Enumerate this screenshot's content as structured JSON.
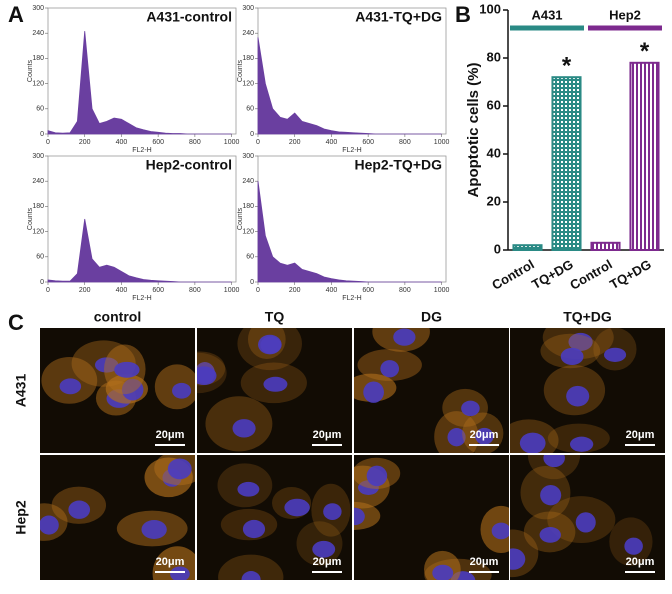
{
  "chart_data": [
    {
      "type": "area",
      "title": "A431-control",
      "xlabel": "FL2-H",
      "ylabel": "Counts",
      "color": "#6a3fa0",
      "x": [
        0,
        40,
        80,
        120,
        160,
        200,
        240,
        280,
        320,
        360,
        400,
        440,
        480,
        520,
        560,
        600,
        640,
        680,
        720,
        760,
        800,
        840,
        880,
        920,
        960,
        1000
      ],
      "values": [
        8,
        3,
        2,
        3,
        30,
        245,
        60,
        25,
        30,
        38,
        35,
        25,
        15,
        10,
        6,
        4,
        2,
        1,
        1,
        0,
        0,
        0,
        0,
        0,
        0,
        0
      ],
      "xlim": [
        0,
        1024
      ],
      "ylim": [
        0,
        300
      ],
      "xticks": [
        0,
        200,
        400,
        600,
        800,
        1000
      ],
      "yticks": [
        0,
        60,
        120,
        180,
        240,
        300
      ]
    },
    {
      "type": "area",
      "title": "A431-TQ+DG",
      "xlabel": "FL2-H",
      "ylabel": "Counts",
      "color": "#6a3fa0",
      "x": [
        0,
        40,
        80,
        120,
        160,
        200,
        240,
        280,
        320,
        360,
        400,
        440,
        480,
        520,
        560,
        600,
        640,
        680,
        720,
        760,
        800,
        840,
        880,
        920,
        960,
        1000
      ],
      "values": [
        230,
        120,
        60,
        40,
        35,
        50,
        30,
        25,
        20,
        12,
        8,
        5,
        4,
        3,
        2,
        1,
        0,
        0,
        0,
        0,
        0,
        0,
        0,
        0,
        0,
        0
      ],
      "xlim": [
        0,
        1024
      ],
      "ylim": [
        0,
        300
      ],
      "xticks": [
        0,
        200,
        400,
        600,
        800,
        1000
      ],
      "yticks": [
        0,
        60,
        120,
        180,
        240,
        300
      ]
    },
    {
      "type": "area",
      "title": "Hep2-control",
      "xlabel": "FL2-H",
      "ylabel": "Counts",
      "color": "#6a3fa0",
      "x": [
        0,
        40,
        80,
        120,
        160,
        200,
        240,
        280,
        320,
        360,
        400,
        440,
        480,
        520,
        560,
        600,
        640,
        680,
        720,
        760,
        800,
        840,
        880,
        920,
        960,
        1000
      ],
      "values": [
        5,
        3,
        2,
        2,
        20,
        150,
        55,
        35,
        40,
        35,
        25,
        15,
        10,
        6,
        4,
        3,
        2,
        1,
        0,
        0,
        0,
        0,
        0,
        0,
        0,
        0
      ],
      "xlim": [
        0,
        1024
      ],
      "ylim": [
        0,
        300
      ],
      "xticks": [
        0,
        200,
        400,
        600,
        800,
        1000
      ],
      "yticks": [
        0,
        60,
        120,
        180,
        240,
        300
      ]
    },
    {
      "type": "area",
      "title": "Hep2-TQ+DG",
      "xlabel": "FL2-H",
      "ylabel": "Counts",
      "color": "#6a3fa0",
      "x": [
        0,
        40,
        80,
        120,
        160,
        200,
        240,
        280,
        320,
        360,
        400,
        440,
        480,
        520,
        560,
        600,
        640,
        680,
        720,
        760,
        800,
        840,
        880,
        920,
        960,
        1000
      ],
      "values": [
        240,
        110,
        60,
        45,
        40,
        45,
        30,
        25,
        20,
        12,
        8,
        5,
        3,
        2,
        1,
        0,
        0,
        0,
        0,
        0,
        0,
        0,
        0,
        0,
        0,
        0
      ],
      "xlim": [
        0,
        1024
      ],
      "ylim": [
        0,
        300
      ],
      "xticks": [
        0,
        200,
        400,
        600,
        800,
        1000
      ],
      "yticks": [
        0,
        60,
        120,
        180,
        240,
        300
      ]
    },
    {
      "type": "bar",
      "ylabel": "Apoptotic cells (%)",
      "categories": [
        "Control",
        "TQ+DG",
        "Control",
        "TQ+DG"
      ],
      "series": [
        {
          "name": "A431",
          "color": "#2a8a85",
          "values": [
            2,
            72,
            null,
            null
          ]
        },
        {
          "name": "Hep2",
          "color": "#7d2a8e",
          "values": [
            null,
            null,
            3,
            78
          ]
        }
      ],
      "annotations": [
        "*",
        "*"
      ],
      "ylim": [
        0,
        100
      ],
      "yticks": [
        0,
        20,
        40,
        60,
        80,
        100
      ]
    }
  ],
  "figure": {
    "panel_labels": [
      "A",
      "B",
      "C"
    ],
    "columns": [
      "control",
      "TQ",
      "DG",
      "TQ+DG"
    ],
    "rows": [
      "A431",
      "Hep2"
    ],
    "scale_bars": [
      "20μm",
      "20μm",
      "20μm",
      "20μm",
      "20μm",
      "20μm",
      "20μm",
      "20μm"
    ]
  }
}
